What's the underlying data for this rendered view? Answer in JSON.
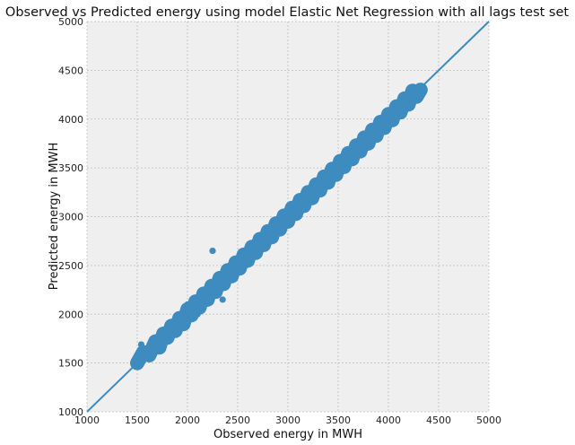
{
  "chart_data": {
    "type": "scatter",
    "title": "Observed vs Predicted energy using model Elastic Net Regression with all lags test set",
    "xlabel": "Observed energy in MWH",
    "ylabel": "Predicted energy in MWH",
    "xlim": [
      1000,
      5000
    ],
    "ylim": [
      1000,
      5000
    ],
    "xticks": [
      "1000",
      "1500",
      "2000",
      "2500",
      "3000",
      "3500",
      "4000",
      "4500",
      "5000"
    ],
    "yticks": [
      "1000",
      "1500",
      "2000",
      "2500",
      "3000",
      "3500",
      "4000",
      "4500",
      "5000"
    ],
    "grid": true,
    "reference_line": {
      "x": [
        1000,
        5000
      ],
      "y": [
        1000,
        5000
      ]
    },
    "series": [
      {
        "x": [
          1500,
          1560,
          1620,
          1680,
          1720,
          1760,
          1800,
          1840,
          1880,
          1920,
          1960,
          2000,
          2040,
          2080,
          2120,
          2160,
          2200,
          2240,
          2280,
          2320,
          2360,
          2400,
          2440,
          2480,
          2520,
          2560,
          2600,
          2640,
          2680,
          2720,
          2760,
          2800,
          2840,
          2880,
          2920,
          2960,
          3000,
          3040,
          3080,
          3120,
          3160,
          3200,
          3240,
          3280,
          3320,
          3360,
          3400,
          3440,
          3480,
          3520,
          3560,
          3600,
          3640,
          3680,
          3720,
          3760,
          3800,
          3840,
          3880,
          3920,
          3960,
          4000,
          4040,
          4080,
          4120,
          4160,
          4200,
          4240,
          4280,
          4320,
          1540,
          1700,
          1800,
          1900,
          2000,
          2100,
          2250,
          2400,
          2500,
          2600,
          2700,
          2800,
          2950,
          3050,
          3150,
          3300,
          3450,
          3550,
          3700,
          3850,
          4000,
          4150,
          4300,
          2250,
          2350,
          2650,
          3200
        ],
        "y": [
          1500,
          1610,
          1580,
          1720,
          1660,
          1800,
          1760,
          1880,
          1830,
          1960,
          1900,
          2050,
          1990,
          2130,
          2070,
          2210,
          2150,
          2290,
          2230,
          2370,
          2310,
          2450,
          2390,
          2530,
          2470,
          2610,
          2550,
          2690,
          2630,
          2770,
          2710,
          2850,
          2790,
          2930,
          2870,
          3010,
          2950,
          3090,
          3030,
          3170,
          3110,
          3250,
          3190,
          3330,
          3270,
          3410,
          3350,
          3490,
          3430,
          3570,
          3510,
          3650,
          3590,
          3730,
          3670,
          3810,
          3750,
          3890,
          3830,
          3970,
          3910,
          4050,
          3990,
          4130,
          4070,
          4210,
          4150,
          4290,
          4230,
          4300,
          1690,
          1650,
          1850,
          1820,
          2100,
          2000,
          2300,
          2420,
          2430,
          2650,
          2620,
          2880,
          2900,
          3120,
          3080,
          3370,
          3400,
          3600,
          3650,
          3900,
          4010,
          4100,
          4250,
          2650,
          2150,
          2580,
          3250
        ]
      }
    ]
  }
}
